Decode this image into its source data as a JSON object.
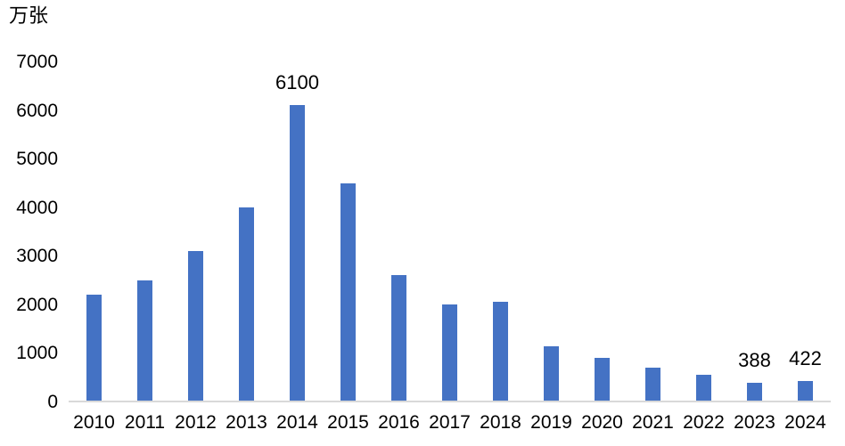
{
  "chart_data": {
    "type": "bar",
    "title": "",
    "ylabel": "万张",
    "xlabel": "",
    "categories": [
      "2010",
      "2011",
      "2012",
      "2013",
      "2014",
      "2015",
      "2016",
      "2017",
      "2018",
      "2019",
      "2020",
      "2021",
      "2022",
      "2023",
      "2024"
    ],
    "values": [
      2200,
      2500,
      3100,
      4000,
      6100,
      4500,
      2600,
      2000,
      2050,
      1140,
      900,
      700,
      550,
      388,
      422
    ],
    "data_labels": [
      {
        "index": 4,
        "text": "6100"
      },
      {
        "index": 13,
        "text": "388"
      },
      {
        "index": 14,
        "text": "422"
      }
    ],
    "yticks": [
      0,
      1000,
      2000,
      3000,
      4000,
      5000,
      6000,
      7000
    ],
    "ylim": [
      0,
      7000
    ],
    "grid": false,
    "legend": false,
    "bar_color": "#4472C4",
    "axis_line_color": "#D9D9D9",
    "text_color": "#000000"
  }
}
